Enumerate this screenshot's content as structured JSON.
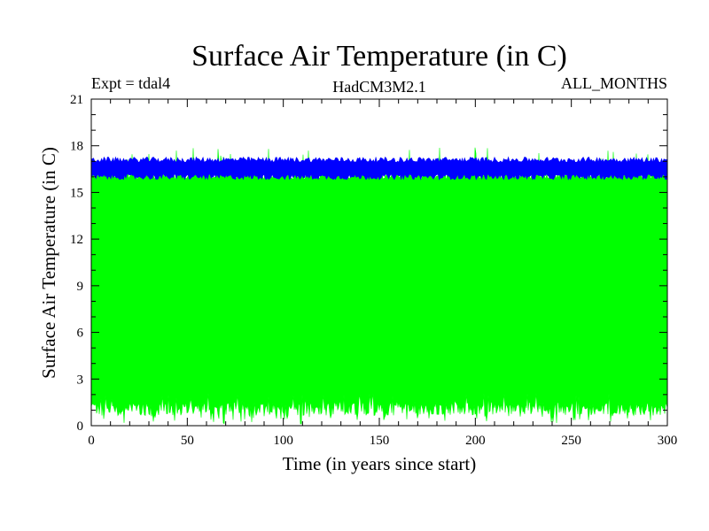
{
  "chart_data": {
    "type": "line",
    "title": "Surface Air Temperature (in C)",
    "annotations": {
      "left": "Expt = tdal4",
      "center": "HadCM3M2.1",
      "right": "ALL_MONTHS"
    },
    "xlabel": "Time (in years since start)",
    "ylabel": "Surface Air Temperature (in C)",
    "xlim": [
      0,
      300
    ],
    "ylim": [
      0,
      21
    ],
    "xticks": [
      0,
      50,
      100,
      150,
      200,
      250,
      300
    ],
    "yticks": [
      0,
      3,
      6,
      9,
      12,
      15,
      18,
      21
    ],
    "grid": false,
    "legend": "none",
    "series": [
      {
        "kind": "monthly",
        "color": "#00ff00",
        "mean_upper": 16.1,
        "mean_lower": 1.1,
        "peak_max": 18.0,
        "trough_min": 0.1
      },
      {
        "kind": "annual",
        "color": "#0000ff",
        "upper": 17.1,
        "lower": 16.0
      }
    ]
  }
}
